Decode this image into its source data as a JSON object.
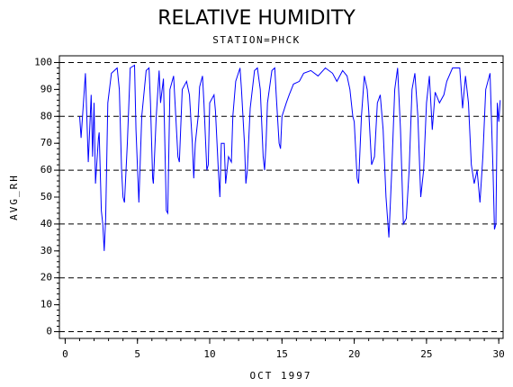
{
  "chart_data": {
    "type": "line",
    "title": "RELATIVE HUMIDITY",
    "subtitle": "STATION=PHCK",
    "x_label": "OCT 1997",
    "y_label": "AVG_RH",
    "color": "#0000ff",
    "grid": true,
    "xlim": [
      -0.4,
      30.3
    ],
    "ylim": [
      -2.5,
      102.5
    ],
    "xticks": [
      0,
      5,
      10,
      15,
      20,
      25,
      30
    ],
    "yticks": [
      0,
      10,
      20,
      30,
      40,
      50,
      60,
      70,
      80,
      90,
      100
    ],
    "gridlines": [
      0,
      20,
      40,
      60,
      80,
      100
    ],
    "xminorticks": [
      0,
      1,
      2,
      3,
      4,
      5,
      6,
      7,
      8,
      9,
      10,
      11,
      12,
      13,
      14,
      15,
      16,
      17,
      18,
      19,
      20,
      21,
      22,
      23,
      24,
      25,
      26,
      27,
      28,
      29,
      30
    ],
    "yminorticks": [
      0,
      2,
      4,
      6,
      8,
      10,
      12,
      14,
      16,
      18,
      20,
      22,
      24,
      26,
      28,
      30,
      32,
      34,
      36,
      38,
      40,
      42,
      44,
      46,
      48,
      50,
      52,
      54,
      56,
      58,
      60,
      62,
      64,
      66,
      68,
      70,
      72,
      74,
      76,
      78,
      80,
      82,
      84,
      86,
      88,
      90,
      92,
      94,
      96,
      98,
      100
    ],
    "x": [
      1.0,
      1.1,
      1.4,
      1.6,
      1.8,
      1.9,
      2.0,
      2.1,
      2.3,
      2.35,
      2.5,
      2.6,
      2.7,
      2.8,
      2.95,
      3.2,
      3.6,
      3.75,
      3.9,
      4.0,
      4.1,
      4.3,
      4.5,
      4.8,
      4.9,
      5.1,
      5.3,
      5.6,
      5.8,
      5.9,
      6.05,
      6.1,
      6.3,
      6.5,
      6.6,
      6.8,
      7.0,
      7.1,
      7.25,
      7.5,
      7.6,
      7.8,
      7.9,
      8.1,
      8.4,
      8.6,
      8.8,
      8.9,
      9.0,
      9.2,
      9.3,
      9.5,
      9.6,
      9.8,
      9.9,
      10.0,
      10.3,
      10.4,
      10.6,
      10.7,
      10.8,
      11.0,
      11.1,
      11.3,
      11.5,
      11.6,
      11.8,
      12.1,
      12.2,
      12.4,
      12.5,
      12.6,
      12.8,
      13.1,
      13.3,
      13.5,
      13.7,
      13.8,
      13.9,
      14.0,
      14.3,
      14.5,
      14.6,
      14.8,
      14.9,
      15.0,
      15.3,
      15.5,
      15.8,
      16.2,
      16.5,
      17.0,
      17.5,
      18.0,
      18.5,
      18.8,
      19.2,
      19.5,
      19.7,
      19.9,
      20.0,
      20.2,
      20.3,
      20.5,
      20.7,
      20.9,
      21.0,
      21.2,
      21.4,
      21.6,
      21.8,
      22.0,
      22.2,
      22.4,
      22.6,
      22.8,
      23.0,
      23.2,
      23.4,
      23.6,
      23.8,
      24.0,
      24.2,
      24.4,
      24.6,
      24.8,
      25.0,
      25.2,
      25.4,
      25.6,
      25.9,
      26.2,
      26.4,
      26.8,
      27.3,
      27.5,
      27.7,
      27.9,
      28.1,
      28.3,
      28.5,
      28.7,
      28.9,
      29.1,
      29.4,
      29.6,
      29.7,
      29.8,
      29.9,
      30.0,
      30.1
    ],
    "values": [
      80,
      72,
      96,
      63,
      88,
      65,
      85,
      55,
      72,
      74,
      45,
      40,
      30,
      42,
      85,
      96,
      98,
      90,
      60,
      50,
      48,
      70,
      98,
      99,
      75,
      48,
      80,
      97,
      98,
      85,
      57,
      55,
      80,
      97,
      85,
      94,
      45,
      44,
      90,
      95,
      85,
      65,
      63,
      90,
      93,
      88,
      70,
      57,
      70,
      80,
      91,
      95,
      85,
      60,
      62,
      85,
      88,
      82,
      60,
      50,
      70,
      70,
      55,
      65,
      63,
      80,
      93,
      98,
      90,
      70,
      55,
      60,
      83,
      97,
      98,
      90,
      65,
      60,
      70,
      85,
      97,
      98,
      88,
      70,
      68,
      80,
      85,
      88,
      92,
      93,
      96,
      97,
      95,
      98,
      96,
      93,
      97,
      95,
      90,
      80,
      78,
      57,
      55,
      80,
      95,
      90,
      82,
      62,
      65,
      85,
      88,
      75,
      50,
      35,
      60,
      90,
      98,
      75,
      40,
      42,
      60,
      90,
      96,
      80,
      50,
      60,
      85,
      95,
      75,
      89,
      85,
      88,
      93,
      98,
      98,
      83,
      95,
      85,
      62,
      55,
      60,
      48,
      65,
      90,
      96,
      60,
      38,
      40,
      85,
      78,
      86
    ]
  }
}
